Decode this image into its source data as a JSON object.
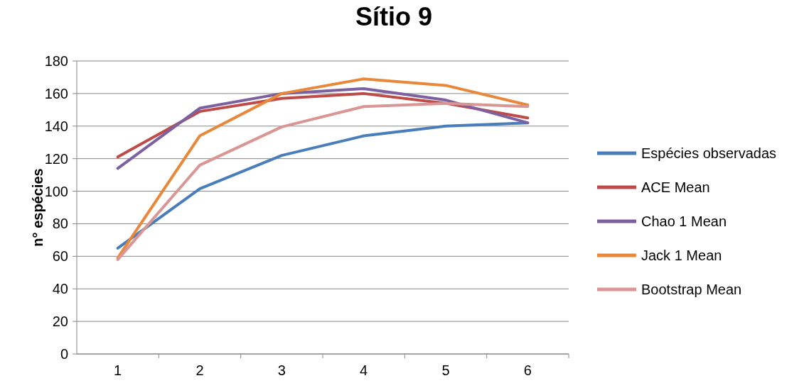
{
  "chart_data": {
    "type": "line",
    "title": "Sítio 9",
    "ylabel": "n° espécies",
    "categories": [
      "1",
      "2",
      "3",
      "4",
      "5",
      "6"
    ],
    "series": [
      {
        "name": "Espécies observadas",
        "color": "#4a7ebb",
        "values": [
          65,
          101.5,
          122,
          134,
          140,
          142
        ]
      },
      {
        "name": "ACE Mean",
        "color": "#be4b48",
        "values": [
          121,
          149,
          157,
          160,
          154,
          145
        ]
      },
      {
        "name": "Chao 1 Mean",
        "color": "#7d60a0",
        "values": [
          114,
          151,
          160,
          163,
          156,
          142
        ]
      },
      {
        "name": "Jack 1 Mean",
        "color": "#e8883a",
        "values": [
          59,
          134,
          160,
          169,
          165,
          153
        ]
      },
      {
        "name": "Bootstrap Mean",
        "color": "#d99694",
        "values": [
          58,
          116,
          139.5,
          152,
          154,
          152
        ]
      }
    ],
    "ylim": [
      0,
      180
    ],
    "yticks": [
      0,
      20,
      40,
      60,
      80,
      100,
      120,
      140,
      160,
      180
    ],
    "grid": "y",
    "legend": "right",
    "marker": "none",
    "line_style": "solid"
  }
}
